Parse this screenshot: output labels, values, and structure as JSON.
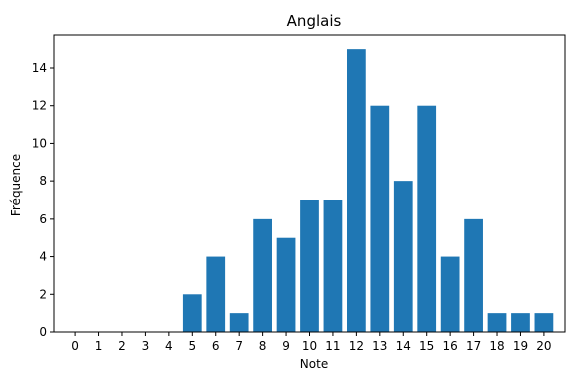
{
  "chart_data": {
    "type": "bar",
    "title": "Anglais",
    "xlabel": "Note",
    "ylabel": "Fréquence",
    "categories": [
      "0",
      "1",
      "2",
      "3",
      "4",
      "5",
      "6",
      "7",
      "8",
      "9",
      "10",
      "11",
      "12",
      "13",
      "14",
      "15",
      "16",
      "17",
      "18",
      "19",
      "20"
    ],
    "values": [
      0,
      0,
      0,
      0,
      0,
      2,
      4,
      1,
      6,
      5,
      7,
      7,
      15,
      12,
      8,
      12,
      4,
      6,
      1,
      1,
      1
    ],
    "yticks": [
      "0",
      "2",
      "4",
      "6",
      "8",
      "10",
      "12",
      "14"
    ],
    "ylim": [
      0,
      15.75
    ],
    "grid": false,
    "bar_color": "#1f77b4"
  }
}
